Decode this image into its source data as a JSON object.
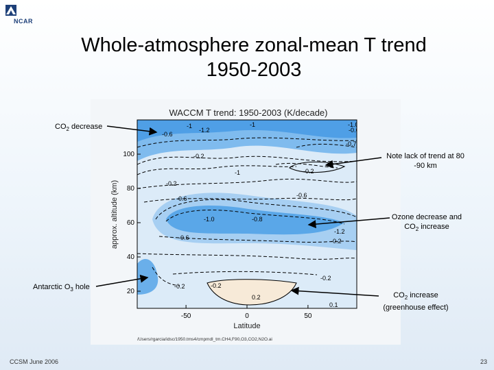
{
  "slide": {
    "logo_text": "NCAR",
    "title_line1": "Whole-atmosphere zonal-mean T trend",
    "title_line2": "1950-2003",
    "footer_left": "CCSM June 2006",
    "page_number": "23"
  },
  "annotations": {
    "co2_top_prefix": "CO",
    "co2_top_sub": "2",
    "co2_top_suffix": " decrease",
    "note_line1": "Note lack of trend at 80",
    "note_line2": "-90 km",
    "ozone_line1": "Ozone decrease and",
    "ozone_line2_prefix": "CO",
    "ozone_line2_sub": "2",
    "ozone_line2_suffix": " increase",
    "antarctic_prefix": "Antarctic O",
    "antarctic_sub": "3",
    "antarctic_suffix": " hole",
    "co2_bottom_prefix": "CO",
    "co2_bottom_sub": "2",
    "co2_bottom_suffix": " increase",
    "co2_bottom_line2": "(greenhouse effect)"
  },
  "chart_data": {
    "type": "heatmap",
    "title": "WACCM T trend: 1950-2003 (K/decade)",
    "xlabel": "Latitude",
    "ylabel": "approx. altitude (km)",
    "xlim": [
      -90,
      90
    ],
    "ylim": [
      10,
      120
    ],
    "x_ticks": [
      "-50",
      "0",
      "50"
    ],
    "x_tick_values": [
      -50,
      0,
      50
    ],
    "y_ticks": [
      "20",
      "40",
      "60",
      "80",
      "100"
    ],
    "y_tick_values": [
      20,
      40,
      60,
      80,
      100
    ],
    "contour_labels": [
      "-1",
      "-1.2",
      "-0.6",
      "-1",
      "-1.0",
      "-0.6",
      "-0.7",
      "-0.2",
      "-1",
      "-0.2",
      "-0.2",
      "-0.6",
      "-0.6",
      "-1.0",
      "-0.8",
      "-1.2",
      "-0.6",
      "-0.2",
      "-0.2",
      "-0.2",
      "-0.2",
      "0.2",
      "0.1"
    ],
    "footnote": "/Users/rgarcia/idsc/1950.tms4/cmpmdl_tm.CH4,F90,O3,CO2,N2O.ai",
    "colors": {
      "strong_cooling": "#4f9fe6",
      "moderate_cooling": "#a7cff2",
      "weak_cooling": "#dcebf8",
      "warming": "#f7ead8",
      "contour": "#000000"
    }
  }
}
